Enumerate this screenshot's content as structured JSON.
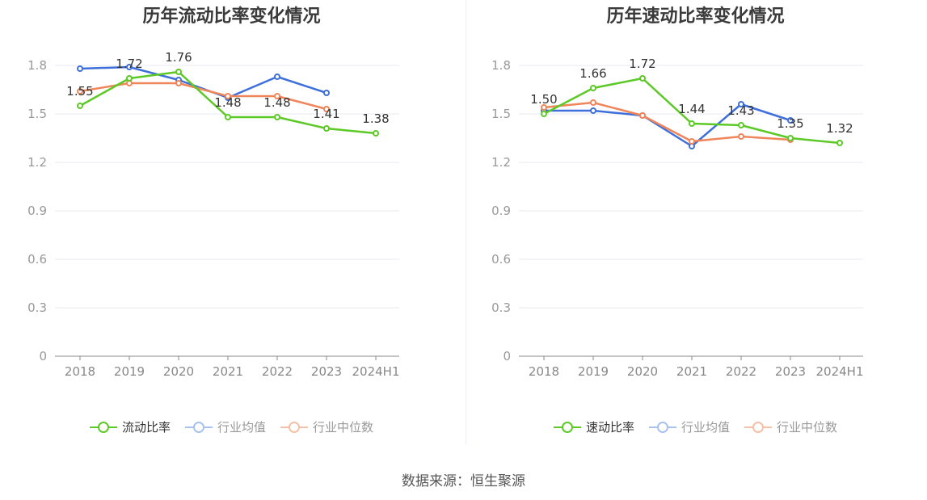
{
  "source_text": "数据来源：恒生聚源",
  "chart_data": [
    {
      "type": "line",
      "title": "历年流动比率变化情况",
      "categories": [
        "2018",
        "2019",
        "2020",
        "2021",
        "2022",
        "2023",
        "2024H1"
      ],
      "ylim": [
        0,
        1.8
      ],
      "yticks": [
        "0",
        "0.3",
        "0.6",
        "0.9",
        "1.2",
        "1.5",
        "1.8"
      ],
      "grid": true,
      "legend_position": "bottom",
      "series": [
        {
          "name": "流动比率",
          "color": "#5cc926",
          "values": [
            1.55,
            1.72,
            1.76,
            1.48,
            1.48,
            1.41,
            1.38
          ],
          "labels": [
            "1.55",
            "1.72",
            "1.76",
            "1.48",
            "1.48",
            "1.41",
            "1.38"
          ],
          "active": true
        },
        {
          "name": "行业均值",
          "color": "#3e6fdb",
          "values": [
            1.78,
            1.79,
            1.71,
            1.6,
            1.73,
            1.63,
            null
          ],
          "active": false
        },
        {
          "name": "行业中位数",
          "color": "#f0855a",
          "values": [
            1.64,
            1.69,
            1.69,
            1.61,
            1.61,
            1.53,
            null
          ],
          "active": false
        }
      ]
    },
    {
      "type": "line",
      "title": "历年速动比率变化情况",
      "categories": [
        "2018",
        "2019",
        "2020",
        "2021",
        "2022",
        "2023",
        "2024H1"
      ],
      "ylim": [
        0,
        1.8
      ],
      "yticks": [
        "0",
        "0.3",
        "0.6",
        "0.9",
        "1.2",
        "1.5",
        "1.8"
      ],
      "grid": true,
      "legend_position": "bottom",
      "series": [
        {
          "name": "速动比率",
          "color": "#5cc926",
          "values": [
            1.5,
            1.66,
            1.72,
            1.44,
            1.43,
            1.35,
            1.32
          ],
          "labels": [
            "1.50",
            "1.66",
            "1.72",
            "1.44",
            "1.43",
            "1.35",
            "1.32"
          ],
          "active": true
        },
        {
          "name": "行业均值",
          "color": "#3e6fdb",
          "values": [
            1.52,
            1.52,
            1.49,
            1.3,
            1.56,
            1.46,
            null
          ],
          "active": false
        },
        {
          "name": "行业中位数",
          "color": "#f0855a",
          "values": [
            1.54,
            1.57,
            1.49,
            1.33,
            1.36,
            1.34,
            null
          ],
          "active": false
        }
      ]
    }
  ]
}
